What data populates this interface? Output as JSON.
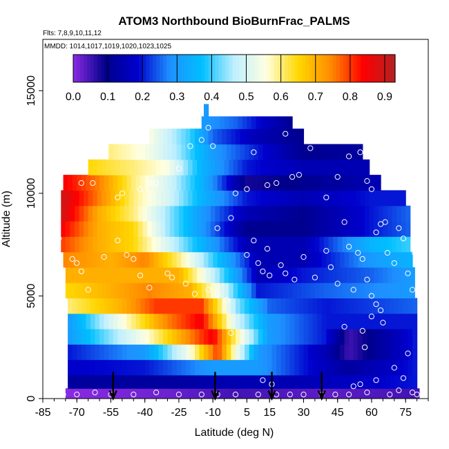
{
  "chart_data": {
    "type": "heatmap",
    "title": "ATOM3 Northbound BioBurnFrac_PALMS",
    "subtitle_flights": "Flts: 7,8,9,10,11,12",
    "subtitle_dates": "MMDD: 1014,1017,1019,1020,1023,1025",
    "xlabel": "Latitude (deg N)",
    "ylabel": "Altitude (m)",
    "xlim": [
      -85,
      85
    ],
    "ylim": [
      0,
      17500
    ],
    "x_ticks": [
      "-85",
      "-70",
      "-55",
      "-40",
      "-25",
      "-10",
      "5",
      "15",
      "30",
      "45",
      "60",
      "75"
    ],
    "y_ticks": [
      "0",
      "5000",
      "10000",
      "15000"
    ],
    "colorbar": {
      "range": [
        0,
        0.93
      ],
      "ticks": [
        "0.0",
        "0.1",
        "0.2",
        "0.3",
        "0.4",
        "0.5",
        "0.6",
        "0.7",
        "0.8",
        "0.9"
      ],
      "colors": [
        "#8a2be2",
        "#00008b",
        "#0000cd",
        "#1e90ff",
        "#00bfff",
        "#bfefff",
        "#ffffe0",
        "#ffd700",
        "#ff8c00",
        "#ff0000",
        "#b22222"
      ]
    },
    "arrows_latitude": [
      -54,
      -9,
      16,
      38
    ],
    "layers": [
      {
        "alt": 200,
        "lat_range": [
          -75,
          81
        ],
        "knots": [
          [
            -75,
            0.0
          ],
          [
            -30,
            0.02
          ],
          [
            0,
            0.05
          ],
          [
            40,
            0.03
          ],
          [
            81,
            0.05
          ]
        ]
      },
      {
        "alt": 800,
        "lat_range": [
          -74,
          80
        ],
        "knots": [
          [
            -74,
            0.12
          ],
          [
            -30,
            0.12
          ],
          [
            0,
            0.15
          ],
          [
            30,
            0.15
          ],
          [
            60,
            0.18
          ],
          [
            80,
            0.2
          ]
        ]
      },
      {
        "alt": 1500,
        "lat_range": [
          -74,
          79
        ],
        "knots": [
          [
            -74,
            0.18
          ],
          [
            -40,
            0.2
          ],
          [
            -10,
            0.3
          ],
          [
            10,
            0.3
          ],
          [
            30,
            0.2
          ],
          [
            50,
            0.12
          ],
          [
            79,
            0.2
          ]
        ]
      },
      {
        "alt": 2300,
        "lat_range": [
          -74,
          79
        ],
        "knots": [
          [
            -74,
            0.2
          ],
          [
            -40,
            0.3
          ],
          [
            -20,
            0.55
          ],
          [
            -8,
            0.8
          ],
          [
            0,
            0.55
          ],
          [
            10,
            0.3
          ],
          [
            40,
            0.15
          ],
          [
            50,
            0.05
          ],
          [
            79,
            0.2
          ]
        ]
      },
      {
        "alt": 3000,
        "lat_range": [
          -74,
          79
        ],
        "knots": [
          [
            -74,
            0.3
          ],
          [
            -40,
            0.55
          ],
          [
            -20,
            0.75
          ],
          [
            -10,
            0.85
          ],
          [
            0,
            0.6
          ],
          [
            15,
            0.3
          ],
          [
            40,
            0.2
          ],
          [
            50,
            0.05
          ],
          [
            79,
            0.2
          ]
        ]
      },
      {
        "alt": 3800,
        "lat_range": [
          -74,
          79
        ],
        "knots": [
          [
            -74,
            0.3
          ],
          [
            -50,
            0.55
          ],
          [
            -30,
            0.75
          ],
          [
            -15,
            0.85
          ],
          [
            0,
            0.5
          ],
          [
            15,
            0.3
          ],
          [
            40,
            0.2
          ],
          [
            79,
            0.2
          ]
        ]
      },
      {
        "alt": 4500,
        "lat_range": [
          -74,
          79
        ],
        "knots": [
          [
            -74,
            0.6
          ],
          [
            -50,
            0.7
          ],
          [
            -35,
            0.8
          ],
          [
            -15,
            0.8
          ],
          [
            0,
            0.45
          ],
          [
            15,
            0.25
          ],
          [
            40,
            0.2
          ],
          [
            79,
            0.25
          ]
        ]
      },
      {
        "alt": 5300,
        "lat_range": [
          -75,
          79
        ],
        "knots": [
          [
            -75,
            0.65
          ],
          [
            -55,
            0.7
          ],
          [
            -38,
            0.75
          ],
          [
            -20,
            0.7
          ],
          [
            -5,
            0.5
          ],
          [
            10,
            0.2
          ],
          [
            40,
            0.25
          ],
          [
            79,
            0.3
          ]
        ]
      },
      {
        "alt": 6000,
        "lat_range": [
          -75,
          78
        ],
        "knots": [
          [
            -75,
            0.7
          ],
          [
            -55,
            0.7
          ],
          [
            -40,
            0.7
          ],
          [
            -25,
            0.7
          ],
          [
            -8,
            0.45
          ],
          [
            10,
            0.15
          ],
          [
            30,
            0.2
          ],
          [
            60,
            0.25
          ],
          [
            78,
            0.3
          ]
        ]
      },
      {
        "alt": 6800,
        "lat_range": [
          -76,
          78
        ],
        "knots": [
          [
            -76,
            0.75
          ],
          [
            -55,
            0.7
          ],
          [
            -40,
            0.75
          ],
          [
            -25,
            0.6
          ],
          [
            -10,
            0.4
          ],
          [
            10,
            0.15
          ],
          [
            30,
            0.15
          ],
          [
            60,
            0.3
          ],
          [
            78,
            0.35
          ]
        ]
      },
      {
        "alt": 7500,
        "lat_range": [
          -77,
          77
        ],
        "knots": [
          [
            -77,
            0.8
          ],
          [
            -60,
            0.7
          ],
          [
            -45,
            0.65
          ],
          [
            -30,
            0.5
          ],
          [
            -15,
            0.35
          ],
          [
            5,
            0.15
          ],
          [
            30,
            0.15
          ],
          [
            60,
            0.35
          ],
          [
            77,
            0.4
          ]
        ]
      },
      {
        "alt": 8300,
        "lat_range": [
          -77,
          77
        ],
        "knots": [
          [
            -77,
            0.85
          ],
          [
            -60,
            0.7
          ],
          [
            -45,
            0.65
          ],
          [
            -30,
            0.45
          ],
          [
            -15,
            0.3
          ],
          [
            5,
            0.1
          ],
          [
            30,
            0.1
          ],
          [
            60,
            0.2
          ],
          [
            77,
            0.25
          ]
        ]
      },
      {
        "alt": 9000,
        "lat_range": [
          -77,
          76
        ],
        "knots": [
          [
            -77,
            0.9
          ],
          [
            -60,
            0.7
          ],
          [
            -45,
            0.6
          ],
          [
            -30,
            0.45
          ],
          [
            -15,
            0.3
          ],
          [
            5,
            0.15
          ],
          [
            30,
            0.1
          ],
          [
            60,
            0.2
          ],
          [
            76,
            0.25
          ]
        ]
      },
      {
        "alt": 9800,
        "lat_range": [
          -77,
          75
        ],
        "knots": [
          [
            -77,
            0.9
          ],
          [
            -60,
            0.75
          ],
          [
            -45,
            0.6
          ],
          [
            -30,
            0.5
          ],
          [
            -15,
            0.35
          ],
          [
            5,
            0.2
          ],
          [
            30,
            0.15
          ],
          [
            60,
            0.2
          ],
          [
            75,
            0.2
          ]
        ]
      },
      {
        "alt": 10500,
        "lat_range": [
          -76,
          63
        ],
        "knots": [
          [
            -76,
            0.85
          ],
          [
            -60,
            0.75
          ],
          [
            -45,
            0.6
          ],
          [
            -30,
            0.5
          ],
          [
            -15,
            0.35
          ],
          [
            5,
            0.08
          ],
          [
            30,
            0.1
          ],
          [
            63,
            0.15
          ]
        ]
      },
      {
        "alt": 11300,
        "lat_range": [
          -65,
          58
        ],
        "knots": [
          [
            -65,
            0.65
          ],
          [
            -45,
            0.6
          ],
          [
            -30,
            0.55
          ],
          [
            -15,
            0.35
          ],
          [
            5,
            0.2
          ],
          [
            30,
            0.15
          ],
          [
            58,
            0.15
          ]
        ]
      },
      {
        "alt": 12000,
        "lat_range": [
          -56,
          55
        ],
        "knots": [
          [
            -56,
            0.6
          ],
          [
            -40,
            0.55
          ],
          [
            -25,
            0.45
          ],
          [
            -10,
            0.3
          ],
          [
            10,
            0.2
          ],
          [
            30,
            0.1
          ],
          [
            55,
            0.12
          ]
        ]
      },
      {
        "alt": 12800,
        "lat_range": [
          -38,
          30
        ],
        "knots": [
          [
            -38,
            0.55
          ],
          [
            -20,
            0.4
          ],
          [
            -10,
            0.25
          ],
          [
            10,
            0.15
          ],
          [
            30,
            0.1
          ]
        ]
      },
      {
        "alt": 13500,
        "lat_range": [
          -15,
          25
        ],
        "knots": [
          [
            -15,
            0.3
          ],
          [
            0,
            0.25
          ],
          [
            25,
            0.1
          ]
        ]
      },
      {
        "alt": 14000,
        "lat_range": [
          -14,
          -12
        ],
        "knots": [
          [
            -14,
            0.3
          ],
          [
            -12,
            0.3
          ]
        ]
      }
    ],
    "points": [
      [
        -78,
        7800
      ],
      [
        -70,
        6600
      ],
      [
        -68,
        6200
      ],
      [
        -72,
        6800
      ],
      [
        -65,
        5300
      ],
      [
        -58,
        6900
      ],
      [
        -52,
        7700
      ],
      [
        -48,
        7000
      ],
      [
        -45,
        6800
      ],
      [
        -42,
        6000
      ],
      [
        -38,
        5400
      ],
      [
        -30,
        6100
      ],
      [
        -28,
        5900
      ],
      [
        -22,
        5600
      ],
      [
        -18,
        5100
      ],
      [
        -12,
        5300
      ],
      [
        -8,
        5100
      ],
      [
        -4,
        4800
      ],
      [
        -2,
        3200
      ],
      [
        -68,
        10500
      ],
      [
        -63,
        10500
      ],
      [
        -52,
        9800
      ],
      [
        -50,
        10000
      ],
      [
        -42,
        10200
      ],
      [
        -38,
        10500
      ],
      [
        -35,
        10500
      ],
      [
        -25,
        11200
      ],
      [
        -20,
        12300
      ],
      [
        -15,
        12600
      ],
      [
        -12,
        13200
      ],
      [
        -10,
        12300
      ],
      [
        -2,
        8800
      ],
      [
        -8,
        8300
      ],
      [
        0,
        10000
      ],
      [
        5,
        10200
      ],
      [
        8,
        12000
      ],
      [
        14,
        10400
      ],
      [
        18,
        10500
      ],
      [
        22,
        12900
      ],
      [
        25,
        10800
      ],
      [
        28,
        10900
      ],
      [
        33,
        12200
      ],
      [
        40,
        9800
      ],
      [
        45,
        10800
      ],
      [
        50,
        11800
      ],
      [
        55,
        12000
      ],
      [
        58,
        10600
      ],
      [
        60,
        10200
      ],
      [
        5,
        7000
      ],
      [
        8,
        7700
      ],
      [
        10,
        6600
      ],
      [
        12,
        6200
      ],
      [
        14,
        7300
      ],
      [
        15,
        6000
      ],
      [
        20,
        6500
      ],
      [
        22,
        6100
      ],
      [
        26,
        5800
      ],
      [
        30,
        6900
      ],
      [
        35,
        5900
      ],
      [
        40,
        7200
      ],
      [
        42,
        6400
      ],
      [
        45,
        5600
      ],
      [
        48,
        8600
      ],
      [
        50,
        7400
      ],
      [
        52,
        5300
      ],
      [
        54,
        7100
      ],
      [
        56,
        6800
      ],
      [
        58,
        5800
      ],
      [
        60,
        5000
      ],
      [
        62,
        8100
      ],
      [
        64,
        8500
      ],
      [
        66,
        8600
      ],
      [
        67,
        7100
      ],
      [
        70,
        6600
      ],
      [
        72,
        8300
      ],
      [
        74,
        7800
      ],
      [
        76,
        6100
      ],
      [
        78,
        5300
      ],
      [
        79,
        7100
      ],
      [
        -76,
        200
      ],
      [
        -70,
        200
      ],
      [
        -62,
        300
      ],
      [
        -55,
        200
      ],
      [
        -45,
        200
      ],
      [
        -35,
        300
      ],
      [
        -25,
        200
      ],
      [
        -15,
        200
      ],
      [
        -8,
        200
      ],
      [
        0,
        200
      ],
      [
        10,
        200
      ],
      [
        12,
        900
      ],
      [
        16,
        700
      ],
      [
        18,
        200
      ],
      [
        24,
        200
      ],
      [
        30,
        200
      ],
      [
        38,
        200
      ],
      [
        44,
        200
      ],
      [
        50,
        200
      ],
      [
        52,
        600
      ],
      [
        55,
        700
      ],
      [
        58,
        300
      ],
      [
        62,
        900
      ],
      [
        68,
        200
      ],
      [
        72,
        400
      ],
      [
        78,
        300
      ],
      [
        80,
        200
      ],
      [
        48,
        3500
      ],
      [
        56,
        3300
      ],
      [
        60,
        4000
      ],
      [
        62,
        4600
      ],
      [
        64,
        4300
      ],
      [
        65,
        3700
      ],
      [
        70,
        1500
      ],
      [
        74,
        1000
      ],
      [
        76,
        2200
      ],
      [
        57,
        2500
      ]
    ]
  }
}
